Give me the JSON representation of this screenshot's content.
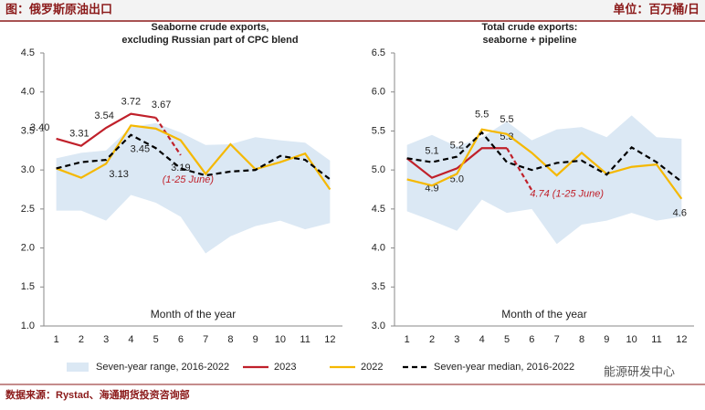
{
  "header": {
    "title": "图：俄罗斯原油出口",
    "unit": "单位：百万桶/日"
  },
  "source": "数据来源：Rystad、海通期货投资咨询部",
  "watermark": "能源研发中心",
  "chart_data": [
    {
      "type": "line",
      "title": [
        "Seaborne crude exports,",
        "excluding Russian part of CPC blend"
      ],
      "x_label": "Month of the year",
      "categories": [
        "1",
        "2",
        "3",
        "4",
        "5",
        "6",
        "7",
        "8",
        "9",
        "10",
        "11",
        "12"
      ],
      "ylim": [
        1.0,
        4.5
      ],
      "yticks": [
        {
          "value": 1.0,
          "label": "1.0"
        },
        {
          "value": 1.5,
          "label": "1.5"
        },
        {
          "value": 2.0,
          "label": "2.0"
        },
        {
          "value": 2.5,
          "label": "2.5"
        },
        {
          "value": 3.0,
          "label": "3.0"
        },
        {
          "value": 3.5,
          "label": "3.5"
        },
        {
          "value": 4.0,
          "label": "4.0"
        },
        {
          "value": 4.5,
          "label": "4.5"
        }
      ],
      "annotations": [
        {
          "text": "(1-25 June)",
          "color": "#c0202a"
        }
      ],
      "series": [
        {
          "name": "Seven-year range, 2016-2022",
          "kind": "band",
          "color": "#dbe8f4",
          "upper": [
            3.15,
            3.22,
            3.25,
            3.55,
            3.6,
            3.48,
            3.32,
            3.33,
            3.42,
            3.38,
            3.35,
            3.12
          ],
          "lower": [
            2.48,
            2.48,
            2.35,
            2.68,
            2.58,
            2.4,
            1.93,
            2.15,
            2.28,
            2.35,
            2.24,
            2.32
          ]
        },
        {
          "name": "2023",
          "color": "#c0202a",
          "dashed_last_segment": true,
          "values": [
            3.4,
            3.31,
            3.54,
            3.72,
            3.67,
            3.19,
            null,
            null,
            null,
            null,
            null,
            null
          ],
          "value_labels": [
            "3.40",
            "3.31",
            "3.54",
            "3.72",
            "3.67",
            "3.19",
            null,
            null,
            null,
            null,
            null,
            null
          ]
        },
        {
          "name": "2022",
          "color": "#f5b800",
          "values": [
            3.02,
            2.9,
            3.08,
            3.57,
            3.53,
            3.38,
            2.95,
            3.33,
            3.01,
            3.1,
            3.21,
            2.75
          ]
        },
        {
          "name": "Seven-year median, 2016-2022",
          "color": "#000000",
          "dashed": true,
          "values": [
            3.02,
            3.1,
            3.13,
            3.45,
            3.28,
            3.02,
            2.93,
            2.98,
            3.0,
            3.18,
            3.13,
            2.88
          ],
          "value_labels": [
            null,
            null,
            "3.13",
            "3.45",
            null,
            null,
            null,
            null,
            null,
            null,
            null,
            null
          ]
        }
      ]
    },
    {
      "type": "line",
      "title": [
        "Total crude exports:",
        "seaborne + pipeline"
      ],
      "x_label": "Month of the year",
      "categories": [
        "1",
        "2",
        "3",
        "4",
        "5",
        "6",
        "7",
        "8",
        "9",
        "10",
        "11",
        "12"
      ],
      "ylim": [
        3.0,
        6.5
      ],
      "yticks": [
        {
          "value": 3.0,
          "label": "3.0"
        },
        {
          "value": 3.5,
          "label": "3.5"
        },
        {
          "value": 4.0,
          "label": "4.0"
        },
        {
          "value": 4.5,
          "label": "4.5"
        },
        {
          "value": 5.0,
          "label": "5.0"
        },
        {
          "value": 5.5,
          "label": "5.5"
        },
        {
          "value": 6.0,
          "label": "6.0"
        },
        {
          "value": 6.5,
          "label": "6.5"
        }
      ],
      "annotations": [
        {
          "text": "4.74 (1-25 June)",
          "color": "#c0202a"
        }
      ],
      "series": [
        {
          "kind": "band",
          "color": "#dbe8f4",
          "upper": [
            5.32,
            5.45,
            5.3,
            5.42,
            5.62,
            5.38,
            5.52,
            5.55,
            5.42,
            5.7,
            5.42,
            5.4
          ],
          "lower": [
            4.47,
            4.35,
            4.22,
            4.62,
            4.45,
            4.5,
            4.05,
            4.3,
            4.35,
            4.45,
            4.35,
            4.4
          ]
        },
        {
          "color": "#c0202a",
          "dashed_last_segment": true,
          "values": [
            5.15,
            4.9,
            5.02,
            5.28,
            5.28,
            4.74,
            null,
            null,
            null,
            null,
            null,
            null
          ],
          "value_labels": [
            null,
            "4.9",
            "5.0",
            null,
            "5.3",
            null,
            null,
            null,
            null,
            null,
            null,
            null
          ]
        },
        {
          "color": "#f5b800",
          "values": [
            4.88,
            4.8,
            4.95,
            5.52,
            5.46,
            5.22,
            4.93,
            5.22,
            4.95,
            5.04,
            5.07,
            4.63
          ],
          "value_labels": [
            null,
            null,
            null,
            "5.5",
            "5.5",
            null,
            null,
            null,
            null,
            null,
            null,
            "4.6"
          ]
        },
        {
          "color": "#000000",
          "dashed": true,
          "values": [
            5.15,
            5.1,
            5.17,
            5.48,
            5.1,
            5.0,
            5.09,
            5.12,
            4.94,
            5.29,
            5.1,
            4.85
          ],
          "value_labels": [
            null,
            "5.1",
            "5.2",
            null,
            null,
            null,
            null,
            null,
            null,
            null,
            null,
            null
          ]
        }
      ]
    }
  ]
}
